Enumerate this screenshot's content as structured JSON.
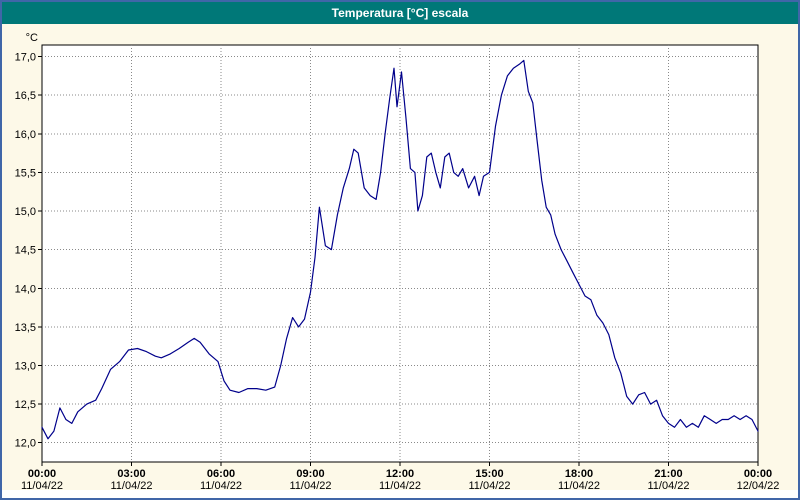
{
  "window": {
    "title": "Temperatura [°C] escala"
  },
  "colors": {
    "window_border": "#4066a8",
    "titlebar_bg": "#007878",
    "titlebar_text": "#ffffff",
    "chart_bg": "#fdf9e8",
    "plot_bg": "#ffffff",
    "plot_border": "#000000",
    "grid": "#8a8a8a",
    "line": "#00008b"
  },
  "chart_data": {
    "type": "line",
    "title": "Temperatura [°C] escala",
    "xlabel": "",
    "ylabel": "°C",
    "grid": true,
    "legend": "none",
    "ylim": [
      11.75,
      17.15
    ],
    "xlim_hours": [
      0,
      24
    ],
    "yticks": [
      {
        "value": 17.0,
        "label": "17,0"
      },
      {
        "value": 16.5,
        "label": "16,5"
      },
      {
        "value": 16.0,
        "label": "16,0"
      },
      {
        "value": 15.5,
        "label": "15,5"
      },
      {
        "value": 15.0,
        "label": "15,0"
      },
      {
        "value": 14.5,
        "label": "14,5"
      },
      {
        "value": 14.0,
        "label": "14,0"
      },
      {
        "value": 13.5,
        "label": "13,5"
      },
      {
        "value": 13.0,
        "label": "13,0"
      },
      {
        "value": 12.5,
        "label": "12,5"
      },
      {
        "value": 12.0,
        "label": "12,0"
      }
    ],
    "xticks": [
      {
        "hour": 0,
        "time": "00:00",
        "date": "11/04/22"
      },
      {
        "hour": 3,
        "time": "03:00",
        "date": "11/04/22"
      },
      {
        "hour": 6,
        "time": "06:00",
        "date": "11/04/22"
      },
      {
        "hour": 9,
        "time": "09:00",
        "date": "11/04/22"
      },
      {
        "hour": 12,
        "time": "12:00",
        "date": "11/04/22"
      },
      {
        "hour": 15,
        "time": "15:00",
        "date": "11/04/22"
      },
      {
        "hour": 18,
        "time": "18:00",
        "date": "11/04/22"
      },
      {
        "hour": 21,
        "time": "21:00",
        "date": "11/04/22"
      },
      {
        "hour": 24,
        "time": "00:00",
        "date": "12/04/22"
      }
    ],
    "series": [
      {
        "name": "Temperatura",
        "points": [
          [
            0.0,
            12.2
          ],
          [
            0.2,
            12.05
          ],
          [
            0.4,
            12.15
          ],
          [
            0.6,
            12.45
          ],
          [
            0.8,
            12.3
          ],
          [
            1.0,
            12.25
          ],
          [
            1.2,
            12.4
          ],
          [
            1.5,
            12.5
          ],
          [
            1.8,
            12.55
          ],
          [
            2.0,
            12.7
          ],
          [
            2.3,
            12.95
          ],
          [
            2.6,
            13.05
          ],
          [
            2.9,
            13.2
          ],
          [
            3.2,
            13.22
          ],
          [
            3.5,
            13.18
          ],
          [
            3.8,
            13.12
          ],
          [
            4.0,
            13.1
          ],
          [
            4.3,
            13.15
          ],
          [
            4.6,
            13.22
          ],
          [
            4.9,
            13.3
          ],
          [
            5.1,
            13.35
          ],
          [
            5.3,
            13.3
          ],
          [
            5.6,
            13.15
          ],
          [
            5.9,
            13.05
          ],
          [
            6.1,
            12.8
          ],
          [
            6.3,
            12.68
          ],
          [
            6.6,
            12.65
          ],
          [
            6.9,
            12.7
          ],
          [
            7.2,
            12.7
          ],
          [
            7.5,
            12.68
          ],
          [
            7.8,
            12.72
          ],
          [
            8.0,
            13.0
          ],
          [
            8.2,
            13.35
          ],
          [
            8.4,
            13.62
          ],
          [
            8.6,
            13.5
          ],
          [
            8.8,
            13.6
          ],
          [
            9.0,
            13.95
          ],
          [
            9.15,
            14.4
          ],
          [
            9.3,
            15.05
          ],
          [
            9.5,
            14.55
          ],
          [
            9.7,
            14.5
          ],
          [
            9.9,
            14.95
          ],
          [
            10.1,
            15.3
          ],
          [
            10.3,
            15.55
          ],
          [
            10.45,
            15.8
          ],
          [
            10.6,
            15.75
          ],
          [
            10.8,
            15.3
          ],
          [
            11.0,
            15.2
          ],
          [
            11.2,
            15.15
          ],
          [
            11.35,
            15.5
          ],
          [
            11.5,
            16.0
          ],
          [
            11.65,
            16.45
          ],
          [
            11.8,
            16.85
          ],
          [
            11.9,
            16.35
          ],
          [
            12.05,
            16.8
          ],
          [
            12.2,
            16.2
          ],
          [
            12.35,
            15.55
          ],
          [
            12.5,
            15.5
          ],
          [
            12.6,
            15.0
          ],
          [
            12.75,
            15.2
          ],
          [
            12.9,
            15.7
          ],
          [
            13.05,
            15.75
          ],
          [
            13.2,
            15.5
          ],
          [
            13.35,
            15.3
          ],
          [
            13.5,
            15.7
          ],
          [
            13.65,
            15.75
          ],
          [
            13.8,
            15.5
          ],
          [
            13.95,
            15.45
          ],
          [
            14.1,
            15.55
          ],
          [
            14.3,
            15.3
          ],
          [
            14.5,
            15.45
          ],
          [
            14.65,
            15.2
          ],
          [
            14.8,
            15.45
          ],
          [
            15.0,
            15.5
          ],
          [
            15.2,
            16.1
          ],
          [
            15.4,
            16.5
          ],
          [
            15.6,
            16.75
          ],
          [
            15.8,
            16.85
          ],
          [
            16.0,
            16.9
          ],
          [
            16.15,
            16.95
          ],
          [
            16.3,
            16.55
          ],
          [
            16.45,
            16.4
          ],
          [
            16.6,
            15.9
          ],
          [
            16.75,
            15.4
          ],
          [
            16.9,
            15.05
          ],
          [
            17.05,
            14.95
          ],
          [
            17.2,
            14.7
          ],
          [
            17.4,
            14.5
          ],
          [
            17.6,
            14.35
          ],
          [
            17.8,
            14.2
          ],
          [
            18.0,
            14.05
          ],
          [
            18.2,
            13.9
          ],
          [
            18.4,
            13.85
          ],
          [
            18.6,
            13.65
          ],
          [
            18.8,
            13.55
          ],
          [
            19.0,
            13.4
          ],
          [
            19.2,
            13.1
          ],
          [
            19.4,
            12.9
          ],
          [
            19.6,
            12.6
          ],
          [
            19.8,
            12.5
          ],
          [
            20.0,
            12.62
          ],
          [
            20.2,
            12.65
          ],
          [
            20.4,
            12.5
          ],
          [
            20.6,
            12.55
          ],
          [
            20.8,
            12.35
          ],
          [
            21.0,
            12.25
          ],
          [
            21.2,
            12.2
          ],
          [
            21.4,
            12.3
          ],
          [
            21.6,
            12.2
          ],
          [
            21.8,
            12.25
          ],
          [
            22.0,
            12.2
          ],
          [
            22.2,
            12.35
          ],
          [
            22.4,
            12.3
          ],
          [
            22.6,
            12.25
          ],
          [
            22.8,
            12.3
          ],
          [
            23.0,
            12.3
          ],
          [
            23.2,
            12.35
          ],
          [
            23.4,
            12.3
          ],
          [
            23.6,
            12.35
          ],
          [
            23.8,
            12.3
          ],
          [
            24.0,
            12.15
          ]
        ]
      }
    ]
  }
}
